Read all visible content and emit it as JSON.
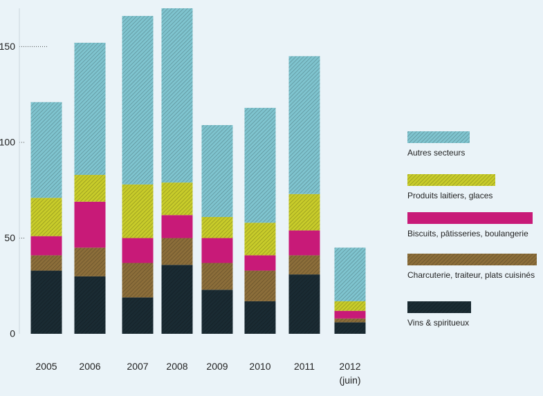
{
  "chart_data": {
    "type": "bar",
    "stacked": true,
    "title": "",
    "xlabel": "",
    "ylabel": "",
    "ylim": [
      0,
      170
    ],
    "yticks": [
      0,
      50,
      100,
      150
    ],
    "grid": false,
    "legend_position": "right",
    "categories": [
      "2005",
      "2006",
      "2007",
      "2008",
      "2009",
      "2010",
      "2011",
      "2012\n(juin)"
    ],
    "category_lines": [
      [
        "2005"
      ],
      [
        "2006"
      ],
      [
        "2007"
      ],
      [
        "2008"
      ],
      [
        "2009"
      ],
      [
        "2010"
      ],
      [
        "2011"
      ],
      [
        "2012",
        "(juin)"
      ]
    ],
    "series": [
      {
        "name": "Vins & spiritueux",
        "color": "#1a2b33",
        "pattern": "hatch",
        "values": [
          33,
          30,
          19,
          36,
          23,
          17,
          31,
          6
        ]
      },
      {
        "name": "Charcuterie, traiteur, plats cuisinés",
        "color": "#8c6e3a",
        "pattern": "hatch",
        "values": [
          8,
          15,
          18,
          14,
          14,
          16,
          10,
          2
        ]
      },
      {
        "name": "Biscuits, pâtisseries, boulangerie",
        "color": "#c81a78",
        "pattern": "solid",
        "values": [
          10,
          24,
          13,
          12,
          13,
          8,
          13,
          4
        ]
      },
      {
        "name": "Produits laitiers, glaces",
        "color": "#c8cc2a",
        "pattern": "hatch",
        "values": [
          20,
          14,
          28,
          17,
          11,
          17,
          19,
          5
        ]
      },
      {
        "name": "Autres secteurs",
        "color": "#7fc4cf",
        "pattern": "hatch",
        "values": [
          50,
          69,
          88,
          91,
          48,
          60,
          72,
          28
        ]
      }
    ]
  }
}
